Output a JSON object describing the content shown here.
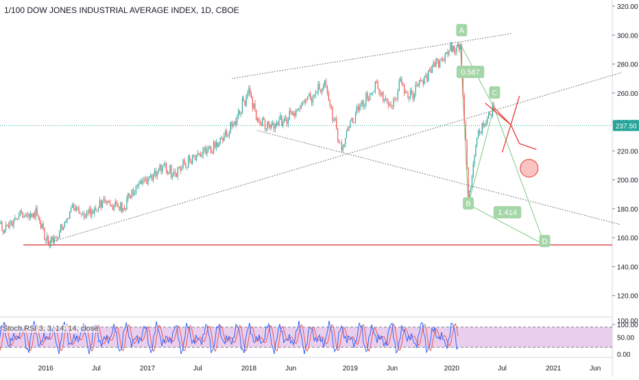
{
  "header": {
    "title": "1/100 DOW JONES INDUSTRIAL AVERAGE INDEX, 1D, CBOE"
  },
  "price_axis": {
    "labels": [
      "320.00",
      "300.00",
      "280.00",
      "260.00",
      "240.00",
      "220.00",
      "200.00",
      "180.00",
      "160.00",
      "140.00",
      "120.00",
      "100.00"
    ]
  },
  "current_price": {
    "label": "237.50",
    "value": 237.5,
    "color": "#26a69a"
  },
  "indicator": {
    "label": "Stoch RSI 3, 3, 14, 14, close",
    "axis_labels": [
      "100.00",
      "50.00",
      "0.00"
    ],
    "bands": [
      80,
      20
    ],
    "fill_color": "#e1bee7",
    "k_color": "#2962ff",
    "d_color": "#ef5350"
  },
  "time_axis": {
    "labels": [
      "Jul",
      "2016",
      "Jul",
      "2017",
      "Jul",
      "2018",
      "Jun",
      "2019",
      "Jun",
      "2020",
      "Jul",
      "2021",
      "Jun"
    ]
  },
  "annotations": {
    "A": "A",
    "B": "B",
    "C": "C",
    "D": "D",
    "fib1": "0.587",
    "fib2": "1.414",
    "label_color": "#a5d6a7",
    "pattern_line_color": "#81c784"
  },
  "support_line": {
    "value": 155,
    "color": "#d32f2f"
  },
  "chart_data": {
    "type": "candlestick",
    "title": "1/100 DOW JONES INDUSTRIAL AVERAGE INDEX, 1D, CBOE",
    "interval": "1D",
    "ylim": [
      90,
      325
    ],
    "y_ticks": [
      100,
      120,
      140,
      160,
      180,
      200,
      220,
      240,
      260,
      280,
      300,
      320
    ],
    "x_range": [
      "2015-06",
      "2021-08"
    ],
    "up_color": "#26a69a",
    "down_color": "#ef5350",
    "price_path": [
      {
        "date": "2015-05",
        "price": 182
      },
      {
        "date": "2015-07",
        "price": 178
      },
      {
        "date": "2015-08",
        "price": 165
      },
      {
        "date": "2015-10",
        "price": 176
      },
      {
        "date": "2015-12",
        "price": 176
      },
      {
        "date": "2016-01",
        "price": 160
      },
      {
        "date": "2016-02",
        "price": 157
      },
      {
        "date": "2016-04",
        "price": 179
      },
      {
        "date": "2016-06",
        "price": 176
      },
      {
        "date": "2016-08",
        "price": 185
      },
      {
        "date": "2016-10",
        "price": 180
      },
      {
        "date": "2016-11",
        "price": 190
      },
      {
        "date": "2016-12",
        "price": 198
      },
      {
        "date": "2017-03",
        "price": 209
      },
      {
        "date": "2017-04",
        "price": 205
      },
      {
        "date": "2017-07",
        "price": 216
      },
      {
        "date": "2017-09",
        "price": 222
      },
      {
        "date": "2017-11",
        "price": 236
      },
      {
        "date": "2018-01",
        "price": 262
      },
      {
        "date": "2018-02",
        "price": 240
      },
      {
        "date": "2018-04",
        "price": 238
      },
      {
        "date": "2018-06",
        "price": 245
      },
      {
        "date": "2018-08",
        "price": 255
      },
      {
        "date": "2018-10",
        "price": 266
      },
      {
        "date": "2018-12",
        "price": 220
      },
      {
        "date": "2019-01",
        "price": 240
      },
      {
        "date": "2019-04",
        "price": 265
      },
      {
        "date": "2019-06",
        "price": 250
      },
      {
        "date": "2019-07",
        "price": 270
      },
      {
        "date": "2019-08",
        "price": 256
      },
      {
        "date": "2019-11",
        "price": 280
      },
      {
        "date": "2020-01",
        "price": 291
      },
      {
        "date": "2020-02",
        "price": 294
      },
      {
        "date": "2020-03",
        "price": 190
      },
      {
        "date": "2020-03",
        "price": 183
      },
      {
        "date": "2020-04",
        "price": 230
      },
      {
        "date": "2020-06",
        "price": 250
      },
      {
        "date": "2020-06",
        "price": 237.5
      }
    ],
    "trendlines": [
      {
        "from": {
          "date": "2017-11",
          "price": 270
        },
        "to": {
          "date": "2020-08",
          "price": 301
        }
      },
      {
        "from": {
          "date": "2016-01",
          "price": 156
        },
        "to": {
          "date": "2021-09",
          "price": 274
        }
      },
      {
        "from": {
          "date": "2018-02",
          "price": 234
        },
        "to": {
          "date": "2021-09",
          "price": 169
        }
      }
    ],
    "horizontal_lines": [
      {
        "price": 155
      },
      {
        "price": 237.5
      }
    ],
    "pattern_points": {
      "A": {
        "date": "2020-02",
        "price": 294
      },
      "B": {
        "date": "2020-03",
        "price": 183
      },
      "C": {
        "date": "2020-06",
        "price": 250
      },
      "D": {
        "date": "2020-12",
        "price": 155
      }
    },
    "projection": [
      {
        "date": "2020-06",
        "price": 250
      },
      {
        "date": "2020-08",
        "price": 238
      },
      {
        "date": "2020-09",
        "price": 225
      }
    ],
    "projection_alt": [
      {
        "date": "2020-08",
        "price": 238
      },
      {
        "date": "2020-09",
        "price": 258
      }
    ],
    "target_zone": {
      "date": "2020-10",
      "price": 208
    }
  }
}
